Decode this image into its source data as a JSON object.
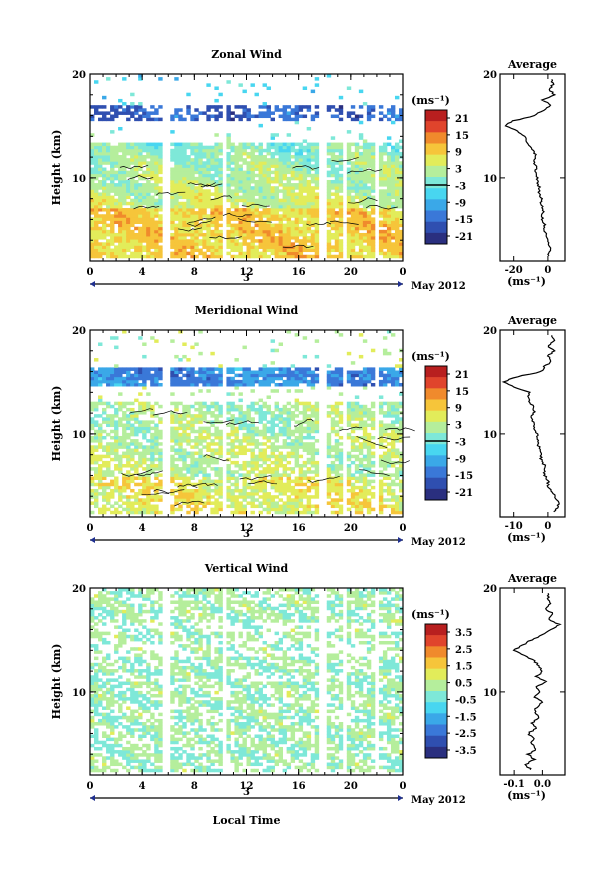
{
  "xaxis": {
    "ticks": [
      "0",
      "4",
      "8",
      "12",
      "16",
      "20",
      "0"
    ],
    "day_label": "3",
    "date_label": "May 2012",
    "xlabel": "Local Time"
  },
  "colors": [
    "#2a2f7f",
    "#2f4fb0",
    "#3a78d8",
    "#3aa8e8",
    "#48d6f0",
    "#7ee8d8",
    "#b5ee9c",
    "#e2ec5a",
    "#f6c53a",
    "#f08a2c",
    "#e0442c",
    "#b81f1f"
  ],
  "chart_data": [
    {
      "type": "heatmap",
      "title": "Zonal Wind",
      "ylabel": "Height (km)",
      "ylim": [
        2,
        20
      ],
      "yticks": [
        "20",
        "10"
      ],
      "xlim": [
        0,
        24
      ],
      "colorbar": {
        "unit": "(ms⁻¹)",
        "ticks": [
          "21",
          "15",
          "9",
          "3",
          "-3",
          "-9",
          "-15",
          "-21"
        ],
        "range": [
          -24,
          24
        ]
      },
      "profile": {
        "title": "Average",
        "xlim": [
          -28,
          10
        ],
        "xticks": [
          "-20",
          "0"
        ],
        "xtick_values": [
          -20,
          0
        ],
        "unit": "(ms⁻¹)",
        "heights": [
          2.5,
          3,
          3.5,
          4,
          4.5,
          5,
          5.5,
          6,
          6.5,
          7,
          7.5,
          8,
          8.5,
          9,
          9.5,
          10,
          10.5,
          11,
          11.5,
          12,
          12.5,
          13,
          13.5,
          14,
          14.5,
          15,
          15.5,
          16,
          16.5,
          17,
          17.5,
          18,
          18.5,
          19,
          19.5
        ],
        "values": [
          0,
          1,
          1,
          0,
          -1,
          -2,
          -2,
          -3,
          -3,
          -3,
          -4,
          -4,
          -5,
          -5,
          -6,
          -6,
          -7,
          -7,
          -8,
          -7,
          -8,
          -10,
          -12,
          -14,
          -18,
          -25,
          -20,
          -8,
          -3,
          2,
          -3,
          4,
          1,
          3,
          2
        ]
      }
    },
    {
      "type": "heatmap",
      "title": "Meridional Wind",
      "ylabel": "Height (km)",
      "ylim": [
        2,
        20
      ],
      "yticks": [
        "20",
        "10"
      ],
      "xlim": [
        0,
        24
      ],
      "colorbar": {
        "unit": "(ms⁻¹)",
        "ticks": [
          "21",
          "15",
          "9",
          "3",
          "-3",
          "-9",
          "-15",
          "-21"
        ],
        "range": [
          -24,
          24
        ]
      },
      "profile": {
        "title": "Average",
        "xlim": [
          -14,
          5
        ],
        "xticks": [
          "-10",
          "0"
        ],
        "xtick_values": [
          -10,
          0
        ],
        "unit": "(ms⁻¹)",
        "heights": [
          2.5,
          3,
          3.5,
          4,
          4.5,
          5,
          5.5,
          6,
          6.5,
          7,
          7.5,
          8,
          8.5,
          9,
          9.5,
          10,
          10.5,
          11,
          11.5,
          12,
          12.5,
          13,
          13.5,
          14,
          14.5,
          15,
          15.5,
          16,
          16.5,
          17,
          17.5,
          18,
          18.5,
          19,
          19.5
        ],
        "values": [
          2,
          3,
          3,
          2,
          1,
          0,
          0,
          -1,
          -1,
          -1,
          -2,
          -2,
          -2,
          -3,
          -3,
          -3,
          -4,
          -4,
          -5,
          -4,
          -4,
          -5,
          -6,
          -5,
          -10,
          -13,
          -9,
          -2,
          -1,
          1,
          0,
          2,
          0,
          2,
          1
        ]
      }
    },
    {
      "type": "heatmap",
      "title": "Vertical Wind",
      "ylabel": "Height (km)",
      "ylim": [
        2,
        20
      ],
      "yticks": [
        "20",
        "10"
      ],
      "xlim": [
        0,
        24
      ],
      "colorbar": {
        "unit": "(ms⁻¹)",
        "ticks": [
          "3.5",
          "2.5",
          "1.5",
          "0.5",
          "-0.5",
          "-1.5",
          "-2.5",
          "-3.5"
        ],
        "range": [
          -4,
          4
        ]
      },
      "profile": {
        "title": "Average",
        "xlim": [
          -0.15,
          0.08
        ],
        "xticks": [
          "-0.1",
          "0.0"
        ],
        "xtick_values": [
          -0.1,
          0
        ],
        "unit": "(ms⁻¹)",
        "heights": [
          2.5,
          3,
          3.5,
          4,
          4.5,
          5,
          5.5,
          6,
          6.5,
          7,
          7.5,
          8,
          8.5,
          9,
          9.5,
          10,
          10.5,
          11,
          11.5,
          12,
          12.5,
          13,
          13.5,
          14,
          14.5,
          15,
          15.5,
          16,
          16.5,
          17,
          17.5,
          18,
          18.5,
          19,
          19.5
        ],
        "values": [
          -0.04,
          -0.06,
          -0.03,
          -0.05,
          -0.02,
          -0.04,
          -0.03,
          -0.05,
          -0.02,
          -0.04,
          -0.01,
          -0.03,
          -0.02,
          0.0,
          -0.03,
          -0.01,
          -0.02,
          0.01,
          -0.02,
          0.0,
          -0.01,
          -0.03,
          -0.06,
          -0.1,
          -0.07,
          -0.04,
          0.0,
          0.03,
          0.06,
          0.02,
          0.04,
          0.01,
          0.03,
          0.02,
          0.02
        ]
      }
    }
  ]
}
